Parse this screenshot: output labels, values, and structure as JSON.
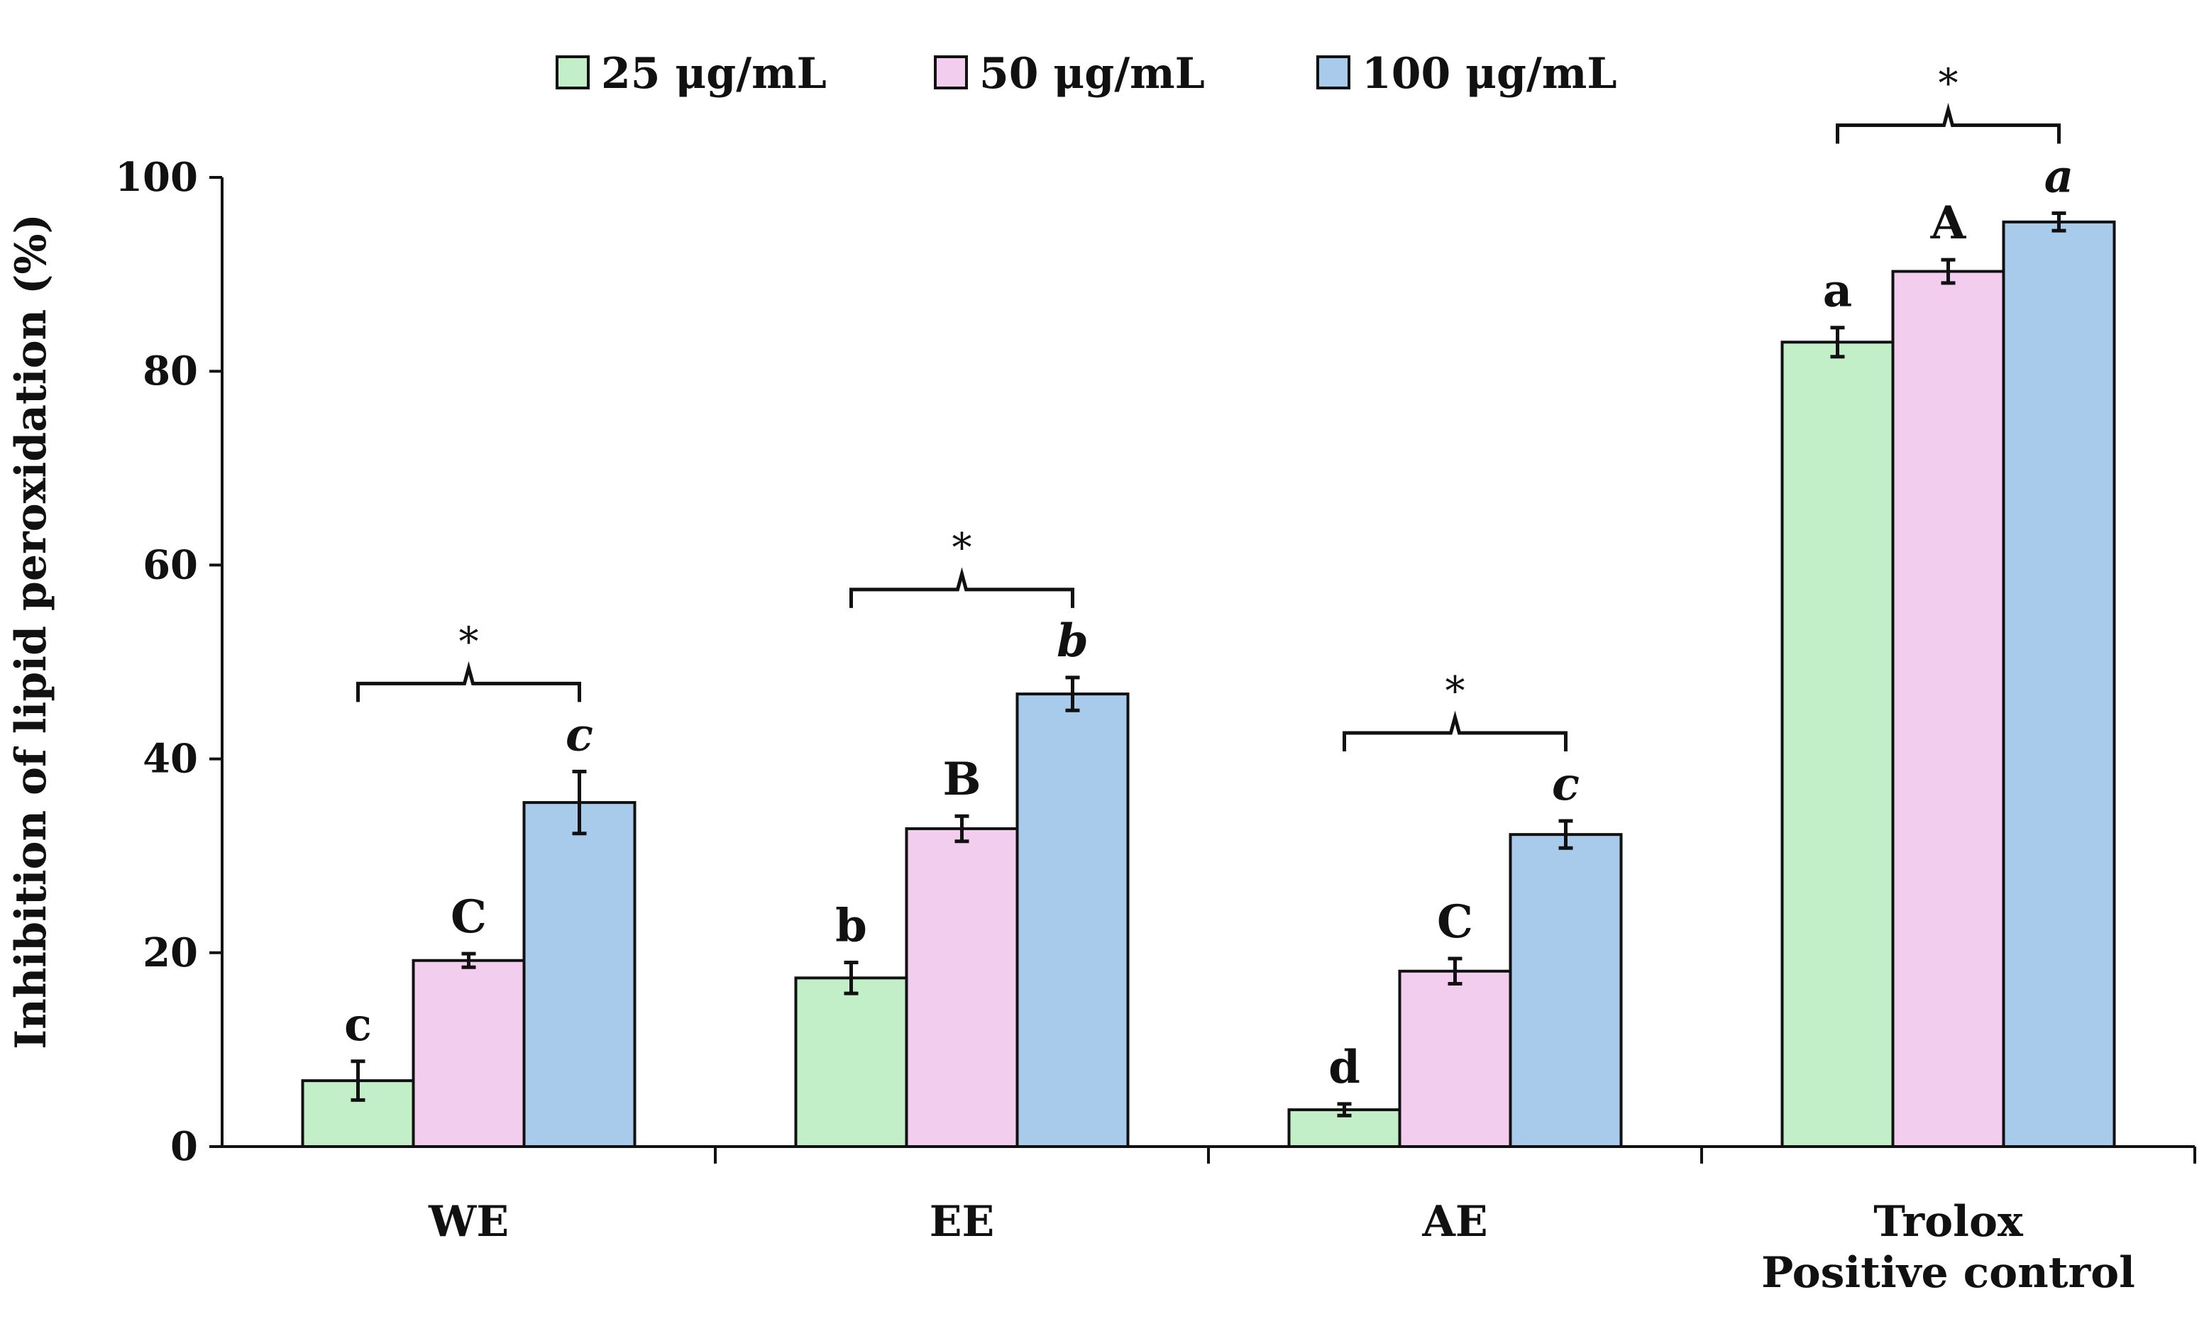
{
  "chart_data": {
    "type": "bar",
    "title": "",
    "xlabel": "",
    "ylabel": "Inhibition of lipid peroxidation (%)",
    "ylim": [
      0,
      100
    ],
    "yticks": [
      "0",
      "20",
      "40",
      "60",
      "80",
      "100"
    ],
    "grid": false,
    "legend_position": "top",
    "categories": [
      {
        "lines": [
          "WE"
        ]
      },
      {
        "lines": [
          "EE"
        ]
      },
      {
        "lines": [
          "AE"
        ]
      },
      {
        "lines": [
          "Trolox",
          "Positive control"
        ]
      }
    ],
    "series": [
      {
        "name": "25 μg/mL",
        "color": "#c3efc8",
        "values": [
          6.8,
          17.4,
          3.8,
          83.0
        ],
        "errors": [
          2.0,
          1.6,
          0.6,
          1.5
        ],
        "labels": [
          "c",
          "b",
          "d",
          "a"
        ],
        "label_italic": false
      },
      {
        "name": "50 μg/mL",
        "color": "#f2cdee",
        "values": [
          19.2,
          32.8,
          18.1,
          90.3
        ],
        "errors": [
          0.7,
          1.3,
          1.3,
          1.2
        ],
        "labels": [
          "C",
          "B",
          "C",
          "A"
        ],
        "label_italic": false
      },
      {
        "name": "100  μg/mL",
        "color": "#a9cbeb",
        "values": [
          35.5,
          46.7,
          32.2,
          95.4
        ],
        "errors": [
          3.2,
          1.7,
          1.4,
          0.9
        ],
        "labels": [
          "c",
          "b",
          "c",
          "a"
        ],
        "label_italic": true
      }
    ],
    "significance": [
      "*",
      "*",
      "*",
      "*"
    ]
  }
}
